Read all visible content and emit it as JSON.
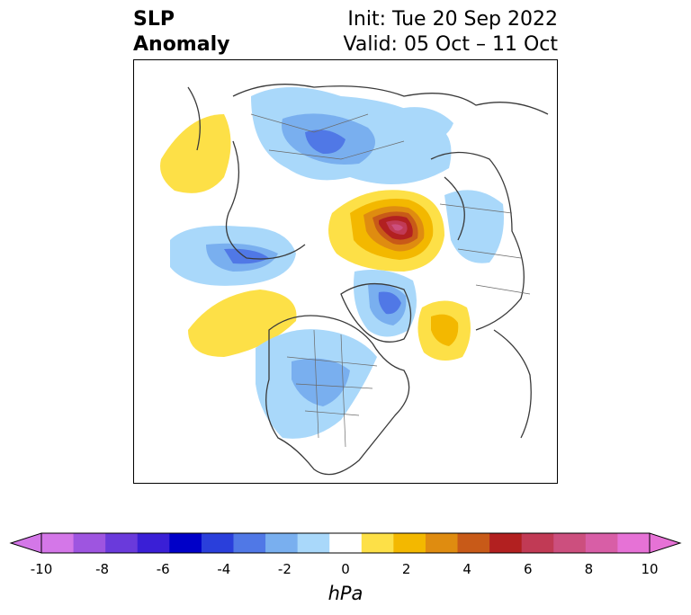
{
  "title": {
    "variable_line1": "SLP",
    "variable_line2": "Anomaly",
    "init": "Init: Tue 20 Sep 2022",
    "valid": "Valid: 05 Oct – 11 Oct"
  },
  "colorbar": {
    "units": "hPa",
    "extend": "both",
    "levels": [
      -10,
      -9,
      -8,
      -7,
      -6,
      -5,
      -4,
      -3,
      -2,
      -1,
      1,
      2,
      3,
      4,
      5,
      6,
      7,
      8,
      9,
      10
    ],
    "tick_labels": [
      "-10",
      "-8",
      "-6",
      "-4",
      "-2",
      "0",
      "2",
      "4",
      "6",
      "8",
      "10"
    ],
    "colors": [
      "#d477e8",
      "#9e55e0",
      "#6a3adb",
      "#3a1fd6",
      "#0000c8",
      "#2a3fdb",
      "#5078e6",
      "#79afef",
      "#a9d8fa",
      "#ffffff",
      "#fde047",
      "#f3b800",
      "#df8c10",
      "#c85a18",
      "#b22020",
      "#c13a55",
      "#cc4f7e",
      "#d85ea6",
      "#e672d6"
    ],
    "under_color": "#d477e8",
    "over_color": "#e672d6"
  },
  "map": {
    "projection": "north-polar-stereographic",
    "region": "Northern Hemisphere",
    "features": [
      {
        "name": "positive-anomaly-scandinavia-barents",
        "max_hPa": 10
      },
      {
        "name": "negative-anomaly-greenland",
        "min_hPa": -5
      },
      {
        "name": "negative-anomaly-north-america",
        "min_hPa": -4
      },
      {
        "name": "negative-anomaly-north-pacific",
        "min_hPa": -4
      },
      {
        "name": "negative-anomaly-siberia",
        "min_hPa": -5
      },
      {
        "name": "positive-anomaly-north-atlantic",
        "max_hPa": 3
      },
      {
        "name": "positive-anomaly-gulf-of-alaska",
        "max_hPa": 2
      },
      {
        "name": "positive-anomaly-east-asia",
        "max_hPa": 2
      }
    ]
  }
}
